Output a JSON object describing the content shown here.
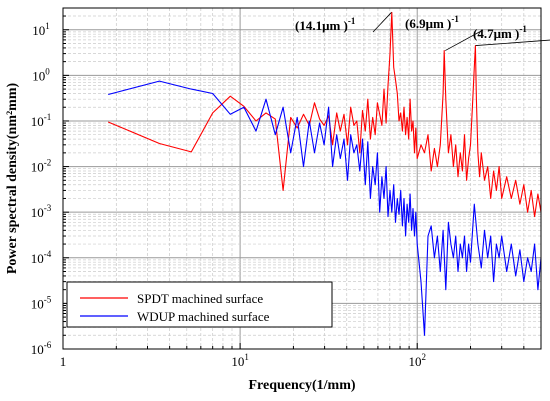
{
  "chart_data": {
    "type": "line",
    "title": "",
    "xlabel": "Frequency(1/mm)",
    "ylabel": "Power spectral density(nm²mm)",
    "xscale": "log",
    "yscale": "log",
    "xlim": [
      1,
      500
    ],
    "ylim": [
      1e-06,
      30
    ],
    "grid": true,
    "legend_position": "bottom-left",
    "x_ticks": [
      {
        "value": 1,
        "label": "1"
      },
      {
        "value": 10,
        "label": "10",
        "sup": "1"
      },
      {
        "value": 100,
        "label": "10",
        "sup": "2"
      }
    ],
    "y_ticks": [
      {
        "value": 10,
        "label": "10",
        "sup": "1"
      },
      {
        "value": 1,
        "label": "10",
        "sup": "0"
      },
      {
        "value": 0.1,
        "label": "10",
        "sup": "-1"
      },
      {
        "value": 0.01,
        "label": "10",
        "sup": "-2"
      },
      {
        "value": 0.001,
        "label": "10",
        "sup": "-3"
      },
      {
        "value": 0.0001,
        "label": "10",
        "sup": "-4"
      },
      {
        "value": 1e-05,
        "label": "10",
        "sup": "-5"
      },
      {
        "value": 1e-06,
        "label": "10",
        "sup": "-6"
      }
    ],
    "series": [
      {
        "name": "SPDT machined surface",
        "color": "#ff0000",
        "x": [
          1.8,
          3.5,
          5.3,
          7.0,
          8.8,
          10.5,
          12.3,
          14.0,
          15.8,
          17.5,
          19.3,
          21.0,
          22.8,
          24.6,
          26.3,
          28.1,
          29.8,
          31.6,
          33.3,
          35.1,
          36.8,
          38.6,
          40.4,
          42.1,
          43.9,
          45.6,
          47.4,
          49.1,
          50.9,
          52.6,
          54.4,
          56.1,
          57.9,
          59.6,
          61.4,
          63.2,
          64.9,
          66.7,
          68.4,
          70.2,
          71.9,
          73.7,
          75.4,
          77.2,
          78.9,
          80.7,
          82.5,
          84.2,
          86.0,
          87.7,
          89.5,
          91.2,
          93.0,
          94.7,
          96.5,
          98.2,
          100,
          105,
          110,
          115,
          120,
          125,
          130,
          135,
          140,
          142,
          145,
          150,
          155,
          160,
          165,
          170,
          175,
          180,
          185,
          190,
          195,
          200,
          205,
          210,
          213,
          216,
          220,
          225,
          230,
          240,
          250,
          260,
          270,
          280,
          290,
          300,
          320,
          340,
          360,
          380,
          400,
          420,
          440,
          460,
          480,
          500
        ],
        "values": [
          0.095,
          0.032,
          0.021,
          0.15,
          0.35,
          0.21,
          0.1,
          0.15,
          0.11,
          0.003,
          0.12,
          0.07,
          0.14,
          0.08,
          0.25,
          0.11,
          0.08,
          0.13,
          0.03,
          0.15,
          0.06,
          0.14,
          0.03,
          0.2,
          0.08,
          0.1,
          0.02,
          0.17,
          0.06,
          0.3,
          0.04,
          0.12,
          0.05,
          0.25,
          0.14,
          0.08,
          0.5,
          0.09,
          0.6,
          3.0,
          24,
          1.5,
          0.8,
          0.4,
          0.1,
          0.15,
          0.06,
          0.2,
          0.05,
          0.12,
          0.04,
          0.3,
          0.06,
          0.1,
          0.02,
          0.07,
          0.015,
          0.03,
          0.02,
          0.05,
          0.008,
          0.025,
          0.01,
          0.03,
          0.4,
          3.5,
          0.3,
          0.02,
          0.05,
          0.01,
          0.03,
          0.006,
          0.02,
          0.008,
          0.05,
          0.005,
          0.015,
          0.03,
          0.2,
          1.5,
          4.5,
          0.3,
          0.02,
          0.006,
          0.02,
          0.005,
          0.01,
          0.002,
          0.008,
          0.003,
          0.01,
          0.002,
          0.006,
          0.002,
          0.005,
          0.0015,
          0.004,
          0.001,
          0.003,
          0.0008,
          0.0025,
          0.001
        ]
      },
      {
        "name": "WDUP machined surface",
        "color": "#0000ff",
        "x": [
          1.8,
          3.5,
          5.3,
          7.0,
          8.8,
          10.5,
          12.3,
          14.0,
          15.8,
          17.5,
          19.3,
          21.0,
          22.8,
          24.6,
          26.3,
          28.1,
          29.8,
          31.6,
          33.3,
          35.1,
          36.8,
          38.6,
          40.4,
          42.1,
          43.9,
          45.6,
          47.4,
          49.1,
          50.9,
          52.6,
          54.4,
          56.1,
          57.9,
          59.6,
          61.4,
          63.2,
          64.9,
          66.7,
          68.4,
          70.2,
          71.9,
          73.7,
          75.4,
          77.2,
          78.9,
          80.7,
          82.5,
          84.2,
          86.0,
          87.7,
          89.5,
          91.2,
          93.0,
          94.7,
          96.5,
          98.2,
          100,
          105,
          110,
          115,
          120,
          125,
          130,
          135,
          140,
          145,
          150,
          155,
          160,
          165,
          170,
          175,
          180,
          185,
          190,
          195,
          200,
          210,
          220,
          230,
          240,
          250,
          260,
          270,
          280,
          290,
          300,
          320,
          340,
          360,
          380,
          400,
          420,
          440,
          460,
          480,
          500
        ],
        "values": [
          0.38,
          0.75,
          0.5,
          0.4,
          0.14,
          0.2,
          0.06,
          0.3,
          0.05,
          0.2,
          0.02,
          0.12,
          0.01,
          0.1,
          0.02,
          0.09,
          0.03,
          0.2,
          0.01,
          0.05,
          0.015,
          0.04,
          0.005,
          0.05,
          0.02,
          0.03,
          0.008,
          0.04,
          0.004,
          0.035,
          0.002,
          0.01,
          0.004,
          0.02,
          0.001,
          0.006,
          0.002,
          0.01,
          0.0008,
          0.003,
          0.001,
          0.004,
          0.0006,
          0.002,
          0.0009,
          0.003,
          0.0005,
          0.002,
          0.0003,
          0.0015,
          0.0006,
          0.0025,
          0.0004,
          0.0012,
          0.0003,
          0.001,
          0.0002,
          3e-05,
          2e-06,
          0.0003,
          0.0005,
          0.0001,
          0.0003,
          5e-05,
          0.0004,
          2e-05,
          0.0006,
          0.0002,
          0.0001,
          0.0003,
          5e-05,
          0.0002,
          0.0001,
          0.0003,
          5e-05,
          0.0002,
          8e-05,
          0.0015,
          0.0002,
          6e-05,
          0.0004,
          0.0001,
          0.0003,
          3e-05,
          0.0002,
          0.0001,
          0.0003,
          5e-05,
          0.0002,
          4e-05,
          0.00015,
          3e-05,
          0.0001,
          5e-05,
          0.0002,
          2e-05,
          0.0001
        ]
      }
    ],
    "annotations": [
      {
        "label": "(14.1μm )",
        "sup": "-1",
        "x": 71.5,
        "y": 24
      },
      {
        "label": "(6.9μm )",
        "sup": "-1",
        "x": 144,
        "y": 3.5
      },
      {
        "label": "(4.7μm )",
        "sup": "-1",
        "x": 214,
        "y": 4.5
      }
    ]
  }
}
